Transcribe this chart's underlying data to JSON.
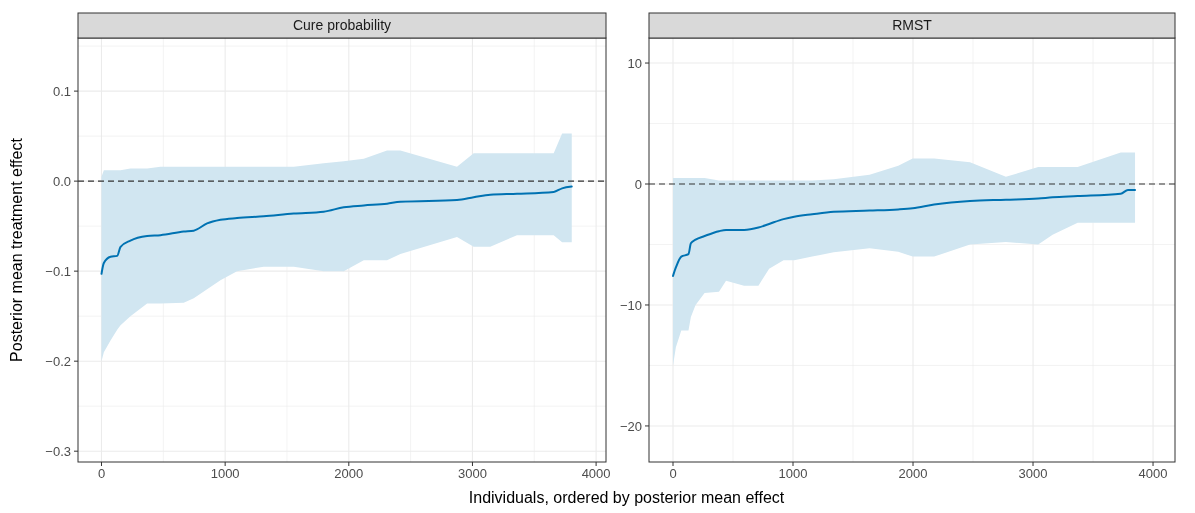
{
  "chart_data": [
    {
      "type": "line",
      "title": "Cure probability",
      "xlabel": "Individuals, ordered by posterior mean effect",
      "ylabel": "Posterior mean treatment effect",
      "xlim": [
        -190,
        4080
      ],
      "ylim": [
        -0.312,
        0.159
      ],
      "xticks": [
        0,
        {
          "value": 500,
          "label": null
        },
        1000,
        {
          "value": 1500,
          "label": null
        },
        2000,
        {
          "value": 2500,
          "label": null
        },
        3000,
        {
          "value": 3500,
          "label": null
        },
        4000
      ],
      "yticks": [
        {
          "value": -0.3,
          "label": "−0.3"
        },
        {
          "value": -0.25,
          "label": null
        },
        {
          "value": -0.2,
          "label": "−0.2"
        },
        {
          "value": -0.15,
          "label": null
        },
        {
          "value": -0.1,
          "label": "−0.1"
        },
        {
          "value": -0.05,
          "label": null
        },
        {
          "value": 0,
          "label": "0.0"
        },
        {
          "value": 0.05,
          "label": null
        },
        {
          "value": 0.1,
          "label": "0.1"
        },
        {
          "value": 0.15,
          "label": null
        }
      ],
      "grid": true,
      "series": [
        {
          "color": "#0072b2",
          "x": [
            0,
            19,
            73,
            127,
            154,
            234,
            369,
            477,
            665,
            746,
            854,
            962,
            1096,
            1312,
            1555,
            1797,
            1959,
            2121,
            2309,
            2417,
            2875,
            3010,
            3144,
            3360,
            3657,
            3725,
            3803
          ],
          "values": [
            -0.103,
            -0.091,
            -0.084,
            -0.083,
            -0.073,
            -0.066,
            -0.061,
            -0.06,
            -0.056,
            -0.055,
            -0.047,
            -0.043,
            -0.041,
            -0.039,
            -0.036,
            -0.034,
            -0.029,
            -0.027,
            -0.025,
            -0.023,
            -0.021,
            -0.018,
            -0.015,
            -0.014,
            -0.012,
            -0.008,
            -0.006
          ],
          "lower": [
            -0.2,
            -0.19,
            -0.177,
            -0.165,
            -0.16,
            -0.15,
            -0.136,
            -0.136,
            -0.135,
            -0.13,
            -0.12,
            -0.11,
            -0.1,
            -0.095,
            -0.095,
            -0.1,
            -0.1,
            -0.088,
            -0.088,
            -0.081,
            -0.062,
            -0.073,
            -0.073,
            -0.06,
            -0.06,
            -0.068,
            -0.068
          ],
          "upper": [
            0.005,
            0.012,
            0.012,
            0.012,
            0.012,
            0.014,
            0.014,
            0.016,
            0.016,
            0.016,
            0.016,
            0.016,
            0.016,
            0.016,
            0.016,
            0.02,
            0.022,
            0.025,
            0.034,
            0.034,
            0.016,
            0.031,
            0.031,
            0.031,
            0.031,
            0.053,
            0.053
          ]
        }
      ],
      "ref_lines": [
        {
          "axis": "y",
          "value": 0,
          "line_style": "dashed",
          "color": "#333333"
        }
      ]
    },
    {
      "type": "line",
      "title": "RMST",
      "xlim": [
        -200,
        4183
      ],
      "ylim": [
        -22.98,
        12.07
      ],
      "xticks": [
        0,
        {
          "value": 500,
          "label": null
        },
        1000,
        {
          "value": 1500,
          "label": null
        },
        2000,
        {
          "value": 2500,
          "label": null
        },
        3000,
        {
          "value": 3500,
          "label": null
        },
        4000
      ],
      "yticks": [
        {
          "value": -20,
          "label": "−20"
        },
        {
          "value": -15,
          "label": null
        },
        {
          "value": -10,
          "label": "−10"
        },
        {
          "value": -5,
          "label": null
        },
        0,
        {
          "value": 5,
          "label": null
        },
        10
      ],
      "grid": true,
      "series": [
        {
          "color": "#0072b2",
          "x": [
            0,
            24,
            69,
            129,
            149,
            188,
            263,
            383,
            442,
            592,
            712,
            801,
            921,
            1010,
            1160,
            1339,
            1638,
            1877,
            1997,
            2176,
            2475,
            2774,
            3043,
            3163,
            3372,
            3731,
            3791,
            3850
          ],
          "values": [
            -7.6,
            -6.9,
            -6,
            -5.8,
            -4.9,
            -4.6,
            -4.3,
            -3.9,
            -3.8,
            -3.8,
            -3.6,
            -3.3,
            -2.9,
            -2.7,
            -2.5,
            -2.3,
            -2.2,
            -2.1,
            -2,
            -1.7,
            -1.4,
            -1.3,
            -1.2,
            -1.1,
            -1,
            -0.8,
            -0.5,
            -0.5
          ],
          "lower": [
            -15,
            -13.5,
            -12.1,
            -12.1,
            -11,
            -10,
            -9,
            -8.9,
            -8,
            -8.4,
            -8.4,
            -7,
            -6.3,
            -6.3,
            -6,
            -5.65,
            -5.3,
            -5.6,
            -6,
            -6,
            -5,
            -4.8,
            -5,
            -4.2,
            -3.2,
            -3.2,
            -3.2,
            -3.2
          ],
          "upper": [
            0.5,
            0.5,
            0.5,
            0.5,
            0.5,
            0.5,
            0.5,
            0.3,
            0.3,
            0.3,
            0.3,
            0.3,
            0.3,
            0.3,
            0.3,
            0.4,
            0.76,
            1.5,
            2.1,
            2.1,
            1.8,
            0.6,
            1.4,
            1.4,
            1.4,
            2.6,
            2.6,
            2.6
          ]
        }
      ],
      "ref_lines": [
        {
          "axis": "y",
          "value": 0,
          "line_style": "dashed",
          "color": "#333333"
        }
      ]
    }
  ]
}
